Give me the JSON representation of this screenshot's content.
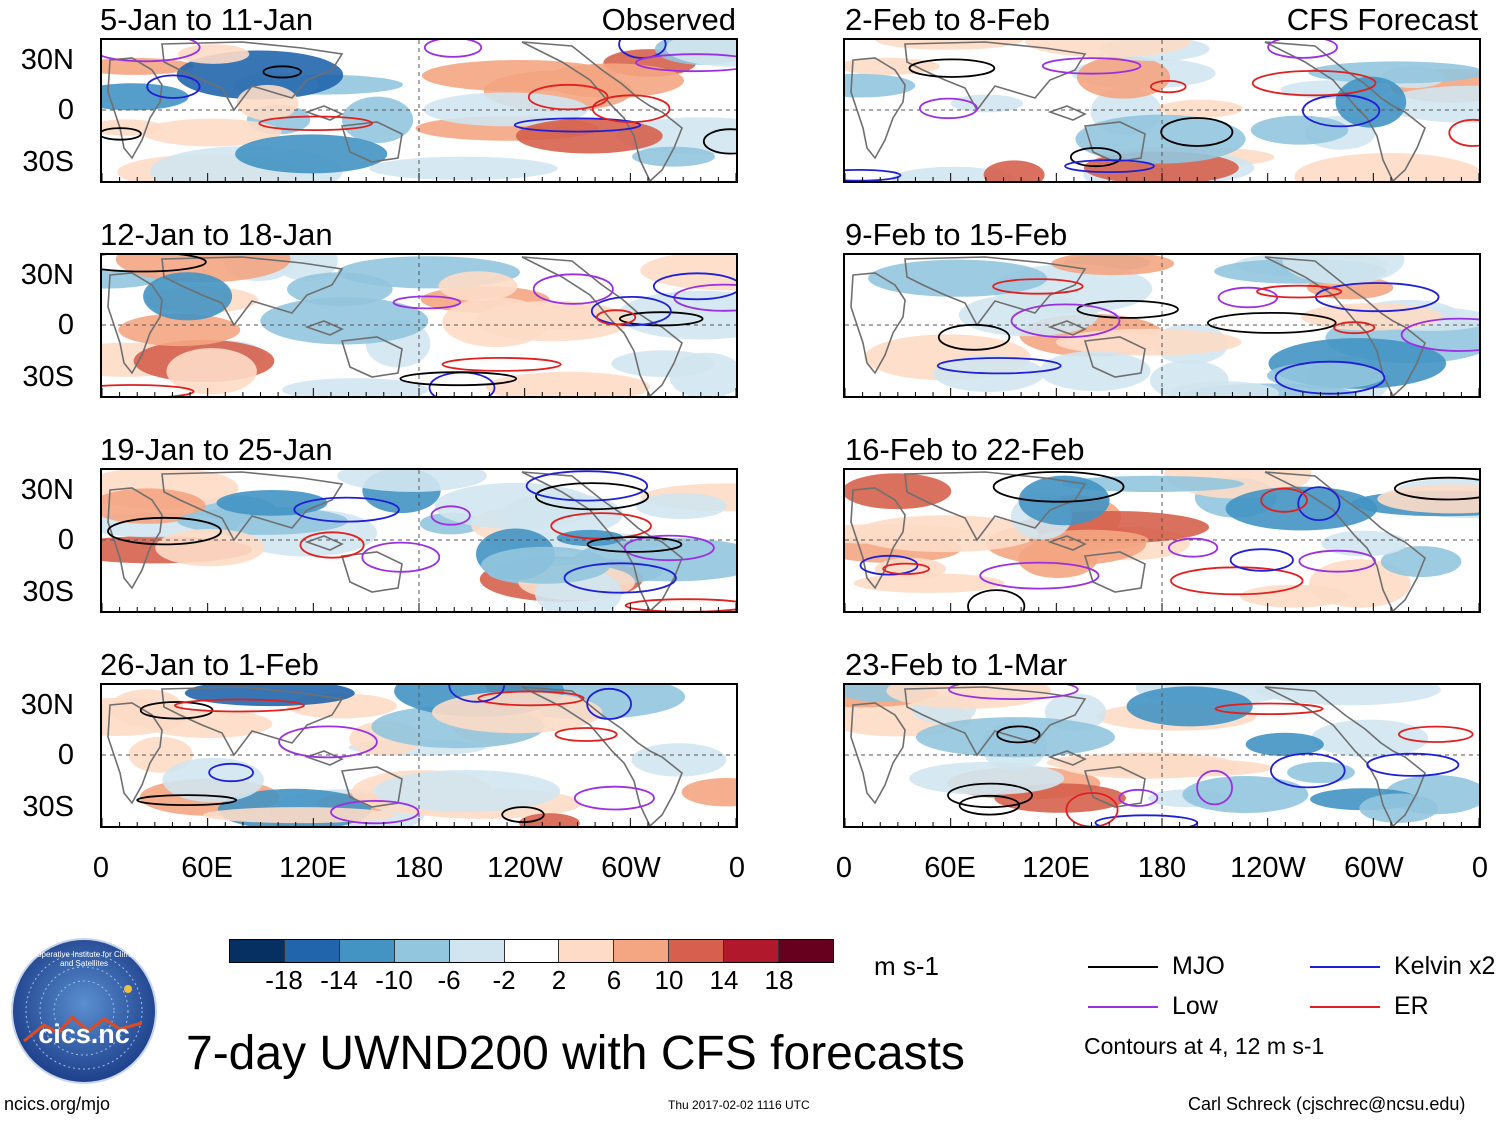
{
  "title": "7-day UWND200 with CFS forecasts",
  "panels_left": [
    {
      "title": "5-Jan to 11-Jan",
      "tag": "Observed"
    },
    {
      "title": "12-Jan to 18-Jan",
      "tag": ""
    },
    {
      "title": "19-Jan to 25-Jan",
      "tag": ""
    },
    {
      "title": "26-Jan to 1-Feb",
      "tag": ""
    }
  ],
  "panels_right": [
    {
      "title": "2-Feb to 8-Feb",
      "tag": "CFS Forecast"
    },
    {
      "title": "9-Feb to 15-Feb",
      "tag": ""
    },
    {
      "title": "16-Feb to 22-Feb",
      "tag": ""
    },
    {
      "title": "23-Feb to 1-Mar",
      "tag": ""
    }
  ],
  "y_labels": [
    "30N",
    "0",
    "30S"
  ],
  "x_labels": [
    "0",
    "60E",
    "120E",
    "180",
    "120W",
    "60W",
    "0"
  ],
  "colorbar": {
    "colors": [
      "#053061",
      "#2166ac",
      "#4393c3",
      "#92c5de",
      "#d1e5f0",
      "#ffffff",
      "#fddbc7",
      "#f4a582",
      "#d6604d",
      "#b2182b",
      "#67001f"
    ],
    "labels": [
      "-18",
      "-14",
      "-10",
      "-6",
      "-2",
      "2",
      "6",
      "10",
      "14",
      "18"
    ],
    "units": "m s-1"
  },
  "legend": {
    "items": [
      {
        "name": "MJO",
        "color": "#000000"
      },
      {
        "name": "Kelvin x2",
        "color": "#1f1fd6"
      },
      {
        "name": "Low",
        "color": "#9b30e0"
      },
      {
        "name": "ER",
        "color": "#e02020"
      }
    ],
    "note": "Contours at 4, 12 m s-1"
  },
  "logo_text": "cics.nc",
  "logo_ring_text": "Cooperative Institute for Climate and Satellites",
  "footer": {
    "left": "ncics.org/mjo",
    "center": "Thu 2017-02-02 1116 UTC",
    "right": "Carl Schreck (cjschrec@ncsu.edu)"
  }
}
